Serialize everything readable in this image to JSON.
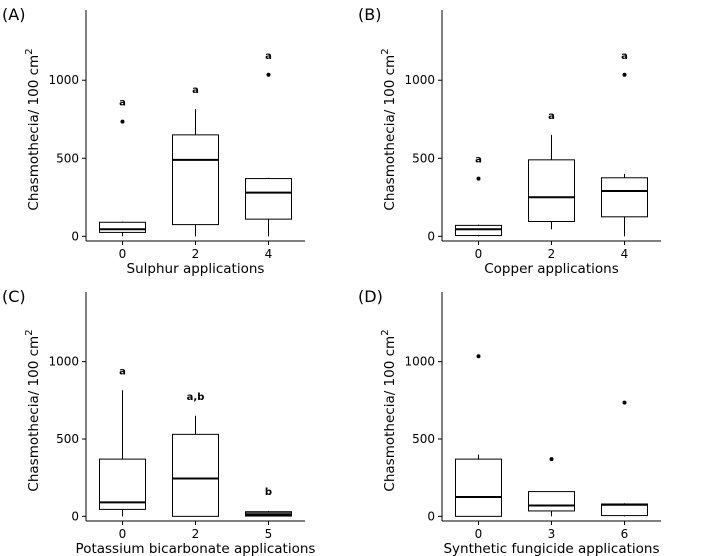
{
  "chart_data": [
    {
      "type": "box",
      "panel_label": "(A)",
      "xlabel": "Sulphur applications",
      "ylabel": "Chasmothecia/ 100 cm",
      "ylabel_superscript": "2",
      "ylim": [
        -30,
        1450
      ],
      "yticks": [
        0,
        500,
        1000
      ],
      "categories": [
        "0",
        "2",
        "4"
      ],
      "boxes": [
        {
          "min": 0,
          "q1": 25,
          "median": 45,
          "q3": 90,
          "max": 95,
          "outliers": [
            735
          ],
          "letter": "a"
        },
        {
          "min": 0,
          "q1": 75,
          "median": 490,
          "q3": 650,
          "max": 815,
          "outliers": [],
          "letter": "a"
        },
        {
          "min": 0,
          "q1": 110,
          "median": 280,
          "q3": 370,
          "max": 375,
          "outliers": [
            1035
          ],
          "letter": "a"
        }
      ]
    },
    {
      "type": "box",
      "panel_label": "(B)",
      "xlabel": "Copper applications",
      "ylabel": "Chasmothecia/ 100 cm",
      "ylabel_superscript": "2",
      "ylim": [
        -30,
        1450
      ],
      "yticks": [
        0,
        500,
        1000
      ],
      "categories": [
        "0",
        "2",
        "4"
      ],
      "boxes": [
        {
          "min": 0,
          "q1": 5,
          "median": 45,
          "q3": 70,
          "max": 75,
          "outliers": [
            370
          ],
          "letter": "a"
        },
        {
          "min": 45,
          "q1": 95,
          "median": 250,
          "q3": 490,
          "max": 650,
          "outliers": [],
          "letter": "a"
        },
        {
          "min": 0,
          "q1": 125,
          "median": 290,
          "q3": 375,
          "max": 400,
          "outliers": [
            1035
          ],
          "letter": "a"
        }
      ]
    },
    {
      "type": "box",
      "panel_label": "(C)",
      "xlabel": "Potassium bicarbonate applications",
      "ylabel": "Chasmothecia/ 100 cm",
      "ylabel_superscript": "2",
      "ylim": [
        -30,
        1450
      ],
      "yticks": [
        0,
        500,
        1000
      ],
      "categories": [
        "0",
        "2",
        "5"
      ],
      "boxes": [
        {
          "min": 0,
          "q1": 45,
          "median": 90,
          "q3": 370,
          "max": 815,
          "outliers": [],
          "letter": "a"
        },
        {
          "min": 0,
          "q1": 0,
          "median": 245,
          "q3": 530,
          "max": 650,
          "outliers": [],
          "letter": "a,b"
        },
        {
          "min": 0,
          "q1": 2,
          "median": 10,
          "q3": 30,
          "max": 35,
          "outliers": [],
          "letter": "b"
        }
      ]
    },
    {
      "type": "box",
      "panel_label": "(D)",
      "xlabel": "Synthetic fungicide applications",
      "ylabel": "Chasmothecia/ 100 cm",
      "ylabel_superscript": "2",
      "ylim": [
        -30,
        1450
      ],
      "yticks": [
        0,
        500,
        1000
      ],
      "categories": [
        "0",
        "3",
        "6"
      ],
      "boxes": [
        {
          "min": 0,
          "q1": 0,
          "median": 125,
          "q3": 370,
          "max": 400,
          "outliers": [
            1035
          ],
          "letter": ""
        },
        {
          "min": 0,
          "q1": 35,
          "median": 70,
          "q3": 160,
          "max": 160,
          "outliers": [
            370
          ],
          "letter": ""
        },
        {
          "min": 0,
          "q1": 5,
          "median": 75,
          "q3": 80,
          "max": 85,
          "outliers": [
            735
          ],
          "letter": ""
        }
      ]
    }
  ]
}
